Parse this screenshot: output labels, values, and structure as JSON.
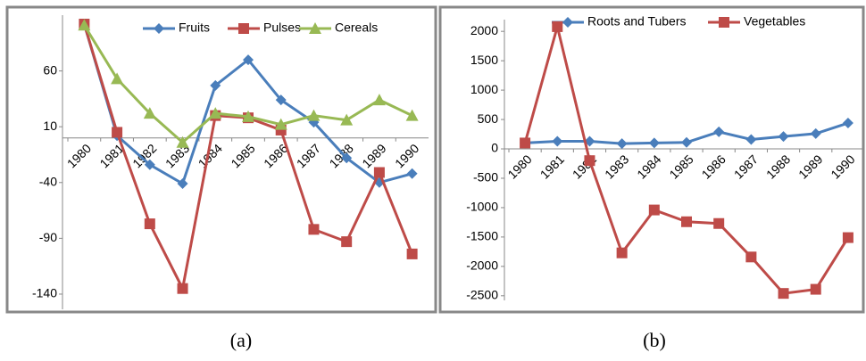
{
  "chart_data": [
    {
      "type": "line",
      "caption": "(a)",
      "categories": [
        "1980",
        "1981",
        "1982",
        "1983",
        "1984",
        "1985",
        "1986",
        "1987",
        "1988",
        "1989",
        "1990"
      ],
      "series": [
        {
          "name": "Fruits",
          "color": "#4a7ebb",
          "marker": "diamond",
          "values": [
            102,
            2,
            -24,
            -41,
            47,
            70,
            34,
            14,
            -18,
            -40,
            -32
          ]
        },
        {
          "name": "Pulses",
          "color": "#be4b48",
          "marker": "square",
          "values": [
            102,
            5,
            -77,
            -135,
            20,
            18,
            7,
            -82,
            -93,
            -31,
            -104
          ]
        },
        {
          "name": "Cereals",
          "color": "#98b954",
          "marker": "triangle",
          "values": [
            101,
            53,
            22,
            -4,
            22,
            19,
            12,
            20,
            16,
            34,
            20
          ]
        }
      ],
      "ylim": [
        -160,
        110
      ],
      "yticks": [
        -140,
        -90,
        -40,
        10,
        60
      ],
      "legend": "top"
    },
    {
      "type": "line",
      "caption": "(b)",
      "categories": [
        "1980",
        "1981",
        "1982",
        "1983",
        "1984",
        "1985",
        "1986",
        "1987",
        "1988",
        "1989",
        "1990"
      ],
      "series": [
        {
          "name": "Roots and Tubers",
          "color": "#4a7ebb",
          "marker": "diamond",
          "values": [
            100,
            130,
            130,
            90,
            100,
            110,
            290,
            160,
            210,
            260,
            440
          ]
        },
        {
          "name": "Vegetables",
          "color": "#be4b48",
          "marker": "square",
          "values": [
            100,
            2080,
            -200,
            -1770,
            -1040,
            -1240,
            -1270,
            -1840,
            -2460,
            -2390,
            -1510
          ]
        }
      ],
      "ylim": [
        -2700,
        2200
      ],
      "yticks": [
        -2500,
        -2000,
        -1500,
        -1000,
        -500,
        0,
        500,
        1000,
        1500,
        2000
      ],
      "legend": "top"
    }
  ]
}
